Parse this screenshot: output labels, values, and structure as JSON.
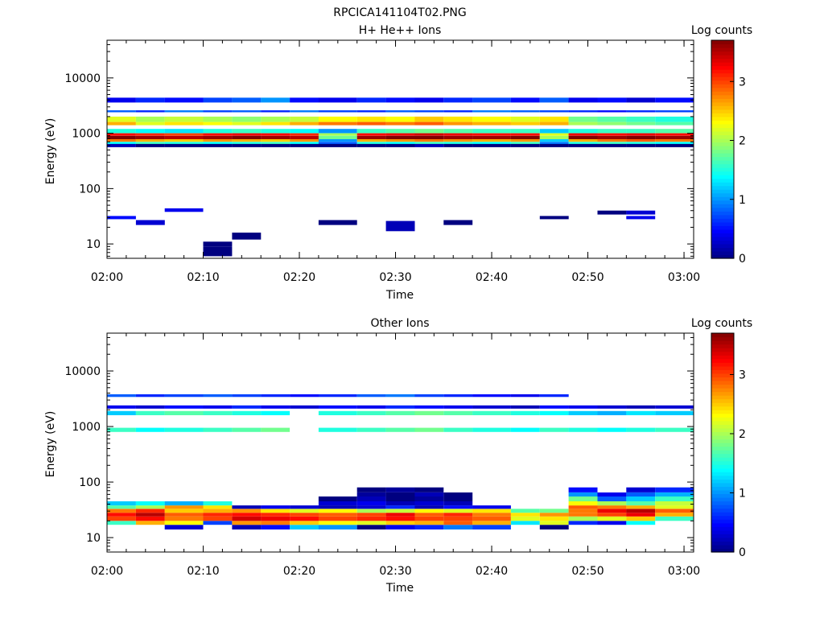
{
  "figure_title": "RPCICA141104T02.PNG",
  "colormap": [
    "#000080",
    "#0000ff",
    "#0080ff",
    "#00ffff",
    "#80ff80",
    "#ffff00",
    "#ff8000",
    "#ff0000",
    "#800000"
  ],
  "chart_data": [
    {
      "type": "heatmap",
      "title": "H+ He++ Ions",
      "xlabel": "Time",
      "ylabel": "Energy (eV)",
      "y_scale": "log",
      "ylim": [
        5.5,
        48000
      ],
      "xlim": [
        "02:00",
        "03:01"
      ],
      "x_ticks": [
        "02:00",
        "02:10",
        "02:20",
        "02:30",
        "02:40",
        "02:50",
        "03:00"
      ],
      "y_ticks": [
        10,
        100,
        1000,
        10000
      ],
      "y_tick_labels": [
        "10",
        "100",
        "1000",
        "10000"
      ],
      "colorbar": {
        "label": "Log counts",
        "range": [
          0,
          3.7
        ],
        "ticks": [
          0,
          1,
          2,
          3
        ]
      },
      "time_bins": [
        "02:00",
        "02:03",
        "02:06",
        "02:10",
        "02:13",
        "02:16",
        "02:19",
        "02:22",
        "02:26",
        "02:29",
        "02:32",
        "02:35",
        "02:38",
        "02:42",
        "02:45",
        "02:48",
        "02:51",
        "02:54",
        "02:57"
      ],
      "energy_bins": [
        {
          "e": [
            1600,
            2000
          ],
          "v": [
            2.2,
            2.0,
            2.1,
            2.0,
            1.9,
            2.0,
            2.1,
            2.3,
            2.4,
            2.3,
            2.5,
            2.4,
            2.3,
            2.2,
            2.4,
            1.8,
            1.7,
            1.6,
            1.5
          ]
        },
        {
          "e": [
            1400,
            1600
          ],
          "v": [
            2.6,
            2.2,
            2.4,
            2.3,
            2.2,
            2.4,
            2.6,
            2.8,
            2.9,
            2.8,
            2.9,
            2.7,
            2.6,
            2.5,
            2.6,
            2.0,
            1.9,
            1.8,
            1.7
          ]
        },
        {
          "e": [
            1000,
            1200
          ],
          "v": [
            1.5,
            1.4,
            1.3,
            1.5,
            1.6,
            1.5,
            1.4,
            1.0,
            1.6,
            1.7,
            1.8,
            1.7,
            1.6,
            1.6,
            1.2,
            1.5,
            1.6,
            1.6,
            1.7
          ]
        },
        {
          "e": [
            900,
            1000
          ],
          "v": [
            3.2,
            3.1,
            3.0,
            3.2,
            3.3,
            3.2,
            3.1,
            2.0,
            3.2,
            3.3,
            3.4,
            3.3,
            3.2,
            3.2,
            2.2,
            3.3,
            3.2,
            3.3,
            3.2
          ]
        },
        {
          "e": [
            780,
            900
          ],
          "v": [
            3.7,
            3.6,
            3.5,
            3.6,
            3.7,
            3.6,
            3.5,
            1.8,
            3.6,
            3.7,
            3.7,
            3.6,
            3.6,
            3.7,
            2.0,
            3.7,
            3.6,
            3.7,
            3.6
          ]
        },
        {
          "e": [
            700,
            780
          ],
          "v": [
            2.8,
            2.6,
            2.5,
            2.7,
            2.6,
            2.5,
            2.7,
            1.0,
            2.6,
            2.7,
            2.8,
            2.7,
            2.6,
            2.7,
            1.2,
            2.6,
            2.8,
            2.9,
            2.8
          ]
        },
        {
          "e": [
            640,
            700
          ],
          "v": [
            1.4,
            1.6,
            1.5,
            1.4,
            1.5,
            1.6,
            1.4,
            0.8,
            1.5,
            1.4,
            1.6,
            1.5,
            1.4,
            1.6,
            0.9,
            1.5,
            1.6,
            1.5,
            1.4
          ]
        },
        {
          "e": [
            3600,
            4400
          ],
          "v": [
            0.4,
            0.6,
            0.5,
            0.7,
            0.8,
            1.0,
            0.5,
            0.4,
            0.6,
            0.5,
            0.4,
            0.6,
            0.7,
            0.5,
            0.8,
            0.4,
            0.5,
            0.3,
            0.5
          ]
        },
        {
          "e": [
            2400,
            2600
          ],
          "v": [
            0.8,
            0.6,
            0.9,
            0.7,
            0.8,
            0.6,
            0.9,
            0.7,
            0.6,
            0.8,
            0.7,
            0.6,
            0.9,
            0.8,
            0.7,
            0.6,
            0.5,
            0.6,
            0.7
          ]
        },
        {
          "e": [
            560,
            640
          ],
          "v": [
            0.2,
            0.0,
            0.0,
            0.0,
            0.0,
            0.0,
            0.0,
            0.0,
            0.0,
            0.0,
            0.2,
            0.0,
            0.0,
            0.0,
            0.0,
            0.0,
            0.0,
            0.0,
            0.0
          ]
        },
        {
          "e": [
            9,
            11
          ],
          "v": [
            null,
            null,
            null,
            0.0,
            null,
            null,
            null,
            null,
            null,
            null,
            null,
            null,
            null,
            null,
            null,
            null,
            null,
            null,
            null
          ]
        },
        {
          "e": [
            6,
            9
          ],
          "v": [
            null,
            null,
            null,
            0.0,
            null,
            null,
            null,
            null,
            null,
            null,
            null,
            null,
            null,
            null,
            null,
            null,
            null,
            null,
            null
          ]
        },
        {
          "e": [
            12,
            16
          ],
          "v": [
            null,
            null,
            null,
            null,
            0.0,
            null,
            null,
            null,
            null,
            null,
            null,
            null,
            null,
            null,
            null,
            null,
            null,
            null,
            null
          ]
        },
        {
          "e": [
            17,
            26
          ],
          "v": [
            null,
            null,
            null,
            null,
            null,
            null,
            null,
            null,
            null,
            0.2,
            null,
            null,
            null,
            null,
            null,
            null,
            null,
            null,
            null
          ]
        },
        {
          "e": [
            22,
            27
          ],
          "v": [
            null,
            0.3,
            null,
            null,
            null,
            null,
            null,
            0.0,
            null,
            null,
            null,
            0.0,
            null,
            null,
            null,
            null,
            null,
            null,
            null
          ]
        },
        {
          "e": [
            28,
            32
          ],
          "v": [
            0.5,
            null,
            null,
            null,
            null,
            null,
            null,
            null,
            null,
            null,
            null,
            null,
            null,
            null,
            0.0,
            null,
            null,
            0.4,
            null
          ]
        },
        {
          "e": [
            34,
            40
          ],
          "v": [
            null,
            null,
            null,
            null,
            null,
            null,
            null,
            null,
            null,
            null,
            null,
            null,
            null,
            null,
            null,
            null,
            0.0,
            0.3,
            null
          ]
        },
        {
          "e": [
            38,
            44
          ],
          "v": [
            null,
            null,
            0.4,
            null,
            null,
            null,
            null,
            null,
            null,
            null,
            null,
            null,
            null,
            null,
            null,
            null,
            null,
            null,
            null
          ]
        }
      ]
    },
    {
      "type": "heatmap",
      "title": "Other Ions",
      "xlabel": "Time",
      "ylabel": "Energy (eV)",
      "y_scale": "log",
      "ylim": [
        5.5,
        48000
      ],
      "xlim": [
        "02:00",
        "03:01"
      ],
      "x_ticks": [
        "02:00",
        "02:10",
        "02:20",
        "02:30",
        "02:40",
        "02:50",
        "03:00"
      ],
      "y_ticks": [
        10,
        100,
        1000,
        10000
      ],
      "y_tick_labels": [
        "10",
        "100",
        "1000",
        "10000"
      ],
      "colorbar": {
        "label": "Log counts",
        "range": [
          0,
          3.7
        ],
        "ticks": [
          0,
          1,
          2,
          3
        ]
      },
      "time_bins": [
        "02:00",
        "02:03",
        "02:06",
        "02:10",
        "02:13",
        "02:16",
        "02:19",
        "02:22",
        "02:26",
        "02:29",
        "02:32",
        "02:35",
        "02:38",
        "02:42",
        "02:45",
        "02:48",
        "02:51",
        "02:54",
        "02:57"
      ],
      "energy_bins": [
        {
          "e": [
            14,
            17
          ],
          "v": [
            null,
            null,
            0.3,
            null,
            0.2,
            0.5,
            1.2,
            1.0,
            0.0,
            0.4,
            0.6,
            0.9,
            0.7,
            null,
            0.0,
            null,
            null,
            null,
            null
          ]
        },
        {
          "e": [
            17,
            20
          ],
          "v": [
            1.6,
            2.6,
            2.3,
            0.7,
            2.7,
            2.8,
            2.5,
            2.3,
            2.2,
            2.5,
            2.6,
            2.9,
            2.6,
            1.3,
            2.2,
            0.6,
            0.4,
            1.4,
            null
          ]
        },
        {
          "e": [
            20,
            24
          ],
          "v": [
            3.0,
            3.2,
            2.8,
            3.0,
            3.4,
            3.3,
            3.2,
            3.0,
            3.1,
            3.2,
            3.0,
            3.0,
            2.9,
            2.2,
            2.4,
            2.0,
            2.2,
            2.5,
            1.6
          ]
        },
        {
          "e": [
            24,
            28
          ],
          "v": [
            3.2,
            3.5,
            2.9,
            3.1,
            3.2,
            3.1,
            3.0,
            2.9,
            3.0,
            3.3,
            2.9,
            3.1,
            2.8,
            2.4,
            2.7,
            2.8,
            3.0,
            3.3,
            2.6
          ]
        },
        {
          "e": [
            28,
            33
          ],
          "v": [
            2.8,
            3.1,
            2.5,
            2.6,
            2.7,
            2.4,
            2.2,
            2.3,
            2.0,
            2.1,
            2.3,
            2.2,
            2.4,
            1.7,
            1.8,
            2.8,
            3.3,
            3.5,
            2.9
          ]
        },
        {
          "e": [
            33,
            38
          ],
          "v": [
            1.7,
            2.0,
            2.7,
            2.4,
            0.2,
            0.4,
            0.3,
            0.2,
            0.3,
            0.6,
            0.2,
            0.5,
            0.4,
            null,
            null,
            2.9,
            2.8,
            2.6,
            2.2
          ]
        },
        {
          "e": [
            38,
            45
          ],
          "v": [
            1.2,
            1.4,
            1.1,
            1.5,
            null,
            null,
            null,
            0.3,
            0.4,
            0.2,
            0.3,
            0.2,
            null,
            null,
            null,
            2.3,
            2.0,
            1.7,
            2.1
          ]
        },
        {
          "e": [
            45,
            55
          ],
          "v": [
            null,
            null,
            null,
            null,
            null,
            null,
            null,
            0.0,
            0.2,
            0.0,
            0.1,
            0.0,
            null,
            null,
            null,
            1.8,
            0.8,
            1.2,
            1.6
          ]
        },
        {
          "e": [
            55,
            65
          ],
          "v": [
            null,
            null,
            null,
            null,
            null,
            null,
            null,
            null,
            0.1,
            0.0,
            0.2,
            0.0,
            null,
            null,
            null,
            1.0,
            0.4,
            0.8,
            1.1
          ]
        },
        {
          "e": [
            65,
            80
          ],
          "v": [
            null,
            null,
            null,
            null,
            null,
            null,
            null,
            null,
            0.0,
            0.1,
            0.0,
            null,
            null,
            null,
            null,
            0.5,
            null,
            0.3,
            0.6
          ]
        },
        {
          "e": [
            800,
            950
          ],
          "v": [
            1.6,
            1.4,
            1.5,
            1.6,
            1.7,
            1.8,
            null,
            1.5,
            1.6,
            1.7,
            1.8,
            1.6,
            1.5,
            1.4,
            1.6,
            1.5,
            1.4,
            1.5,
            1.6
          ]
        },
        {
          "e": [
            1600,
            1900
          ],
          "v": [
            1.2,
            1.6,
            1.7,
            1.6,
            1.5,
            1.4,
            null,
            1.5,
            1.6,
            1.7,
            1.8,
            1.7,
            1.6,
            1.5,
            1.4,
            1.2,
            1.1,
            1.3,
            1.2
          ]
        },
        {
          "e": [
            3400,
            3800
          ],
          "v": [
            0.8,
            0.6,
            0.7,
            0.8,
            0.7,
            0.6,
            0.5,
            0.6,
            0.8,
            0.9,
            0.7,
            0.6,
            0.5,
            0.4,
            0.6,
            null,
            null,
            null,
            null
          ]
        },
        {
          "e": [
            2100,
            2400
          ],
          "v": [
            0.4,
            0.3,
            0.5,
            0.4,
            0.6,
            0.4,
            0.3,
            0.5,
            0.4,
            0.6,
            0.5,
            0.4,
            0.3,
            0.2,
            0.5,
            0.4,
            0.3,
            0.2,
            0.3
          ]
        }
      ]
    }
  ]
}
